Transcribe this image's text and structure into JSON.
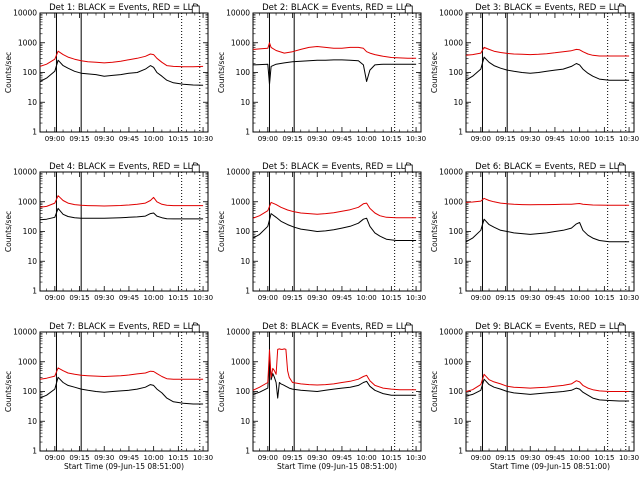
{
  "figure": {
    "colors": {
      "events": "#000000",
      "lld": "#e00000",
      "axes": "#000000"
    },
    "x_ticks": [
      "09:00",
      "09:15",
      "09:30",
      "09:45",
      "10:00",
      "10:15",
      "10:30"
    ],
    "y_ticks": [
      "1",
      "10",
      "100",
      "1000",
      "10000"
    ],
    "ylabel": "Counts/sec"
  },
  "chart_data": [
    {
      "type": "line",
      "title": "Det 1: BLACK = Events, RED = LLD",
      "xlabel": "",
      "ylabel": "Counts/sec",
      "xlim": [
        "08:51",
        "10:33"
      ],
      "ylim": [
        1,
        10000
      ],
      "yscale": "log",
      "grid": false,
      "solid_vlines": [
        "09:01",
        "09:16"
      ],
      "dotted_vlines": [
        "10:17",
        "10:28"
      ],
      "x": [
        "08:51",
        "08:55",
        "09:00",
        "09:02",
        "09:05",
        "09:08",
        "09:12",
        "09:16",
        "09:20",
        "09:25",
        "09:30",
        "09:35",
        "09:40",
        "09:45",
        "09:50",
        "09:55",
        "09:58",
        "10:00",
        "10:02",
        "10:05",
        "10:08",
        "10:12",
        "10:18",
        "10:24",
        "10:30"
      ],
      "series": [
        {
          "name": "Events",
          "values": [
            50,
            65,
            110,
            260,
            170,
            140,
            110,
            95,
            90,
            85,
            75,
            80,
            85,
            95,
            100,
            130,
            170,
            150,
            100,
            75,
            55,
            45,
            40,
            38,
            37
          ]
        },
        {
          "name": "LLD",
          "values": [
            160,
            190,
            280,
            520,
            400,
            330,
            280,
            250,
            230,
            220,
            210,
            220,
            240,
            270,
            300,
            350,
            420,
            400,
            300,
            220,
            170,
            160,
            155,
            155,
            160
          ]
        }
      ]
    },
    {
      "type": "line",
      "title": "Det 2: BLACK = Events, RED = LLD",
      "xlabel": "",
      "ylabel": "Counts/sec",
      "xlim": [
        "08:51",
        "10:33"
      ],
      "ylim": [
        1,
        10000
      ],
      "yscale": "log",
      "grid": false,
      "solid_vlines": [
        "09:01",
        "09:16"
      ],
      "dotted_vlines": [
        "10:17",
        "10:28"
      ],
      "x": [
        "08:51",
        "08:55",
        "09:00",
        "09:01",
        "09:02",
        "09:05",
        "09:10",
        "09:15",
        "09:20",
        "09:25",
        "09:30",
        "09:35",
        "09:40",
        "09:45",
        "09:50",
        "09:55",
        "09:58",
        "10:00",
        "10:02",
        "10:05",
        "10:10",
        "10:15",
        "10:20",
        "10:25",
        "10:30"
      ],
      "series": [
        {
          "name": "Events",
          "values": [
            180,
            185,
            190,
            40,
            160,
            190,
            210,
            230,
            240,
            250,
            260,
            260,
            265,
            265,
            260,
            250,
            180,
            50,
            120,
            180,
            190,
            190,
            190,
            190,
            190
          ]
        },
        {
          "name": "LLD",
          "values": [
            600,
            620,
            650,
            1000,
            700,
            550,
            450,
            500,
            600,
            700,
            750,
            700,
            650,
            650,
            700,
            700,
            650,
            500,
            450,
            400,
            350,
            320,
            310,
            300,
            300
          ]
        }
      ]
    },
    {
      "type": "line",
      "title": "Det 3: BLACK = Events, RED = LLD",
      "xlabel": "",
      "ylabel": "Counts/sec",
      "xlim": [
        "08:51",
        "10:33"
      ],
      "ylim": [
        1,
        10000
      ],
      "yscale": "log",
      "grid": false,
      "solid_vlines": [
        "09:01",
        "09:16"
      ],
      "dotted_vlines": [
        "10:17",
        "10:28"
      ],
      "x": [
        "08:51",
        "08:55",
        "09:00",
        "09:02",
        "09:05",
        "09:08",
        "09:12",
        "09:16",
        "09:20",
        "09:25",
        "09:30",
        "09:35",
        "09:40",
        "09:45",
        "09:50",
        "09:55",
        "09:58",
        "10:00",
        "10:02",
        "10:05",
        "10:08",
        "10:12",
        "10:18",
        "10:24",
        "10:30"
      ],
      "series": [
        {
          "name": "Events",
          "values": [
            55,
            75,
            130,
            330,
            220,
            170,
            140,
            120,
            110,
            100,
            95,
            100,
            110,
            120,
            130,
            160,
            200,
            180,
            130,
            95,
            75,
            60,
            55,
            55,
            55
          ]
        },
        {
          "name": "LLD",
          "values": [
            380,
            400,
            450,
            700,
            600,
            520,
            470,
            440,
            420,
            410,
            400,
            410,
            430,
            460,
            500,
            540,
            600,
            580,
            500,
            420,
            380,
            360,
            360,
            360,
            360
          ]
        }
      ]
    },
    {
      "type": "line",
      "title": "Det 4: BLACK = Events, RED = LLD",
      "xlabel": "",
      "ylabel": "Counts/sec",
      "xlim": [
        "08:51",
        "10:33"
      ],
      "ylim": [
        1,
        10000
      ],
      "yscale": "log",
      "grid": false,
      "solid_vlines": [
        "09:01",
        "09:16"
      ],
      "dotted_vlines": [
        "10:17",
        "10:28"
      ],
      "x": [
        "08:51",
        "08:55",
        "09:00",
        "09:02",
        "09:05",
        "09:08",
        "09:12",
        "09:16",
        "09:20",
        "09:25",
        "09:30",
        "09:35",
        "09:40",
        "09:45",
        "09:50",
        "09:55",
        "09:58",
        "10:00",
        "10:02",
        "10:05",
        "10:08",
        "10:12",
        "10:18",
        "10:24",
        "10:30"
      ],
      "series": [
        {
          "name": "Events",
          "values": [
            250,
            260,
            300,
            600,
            380,
            320,
            290,
            280,
            280,
            280,
            280,
            285,
            290,
            300,
            310,
            330,
            400,
            420,
            330,
            290,
            270,
            265,
            265,
            265,
            265
          ]
        },
        {
          "name": "LLD",
          "values": [
            650,
            700,
            900,
            1600,
            1100,
            900,
            800,
            760,
            740,
            730,
            720,
            730,
            750,
            780,
            820,
            900,
            1100,
            1400,
            1000,
            820,
            760,
            740,
            740,
            740,
            740
          ]
        }
      ]
    },
    {
      "type": "line",
      "title": "Det 5: BLACK = Events, RED = LLD",
      "xlabel": "",
      "ylabel": "Counts/sec",
      "xlim": [
        "08:51",
        "10:33"
      ],
      "ylim": [
        1,
        10000
      ],
      "yscale": "log",
      "grid": false,
      "solid_vlines": [
        "09:01",
        "09:16"
      ],
      "dotted_vlines": [
        "10:17",
        "10:28"
      ],
      "x": [
        "08:51",
        "08:55",
        "09:00",
        "09:02",
        "09:05",
        "09:08",
        "09:12",
        "09:16",
        "09:20",
        "09:25",
        "09:30",
        "09:35",
        "09:40",
        "09:45",
        "09:50",
        "09:55",
        "09:58",
        "10:00",
        "10:02",
        "10:05",
        "10:08",
        "10:12",
        "10:18",
        "10:24",
        "10:30"
      ],
      "series": [
        {
          "name": "Events",
          "values": [
            60,
            80,
            150,
            400,
            300,
            220,
            170,
            140,
            120,
            110,
            100,
            105,
            115,
            130,
            150,
            190,
            260,
            280,
            150,
            90,
            70,
            55,
            50,
            50,
            50
          ]
        },
        {
          "name": "LLD",
          "values": [
            280,
            340,
            500,
            950,
            800,
            650,
            530,
            460,
            420,
            400,
            380,
            400,
            430,
            480,
            540,
            650,
            850,
            900,
            600,
            420,
            340,
            300,
            290,
            290,
            290
          ]
        }
      ]
    },
    {
      "type": "line",
      "title": "Det 6: BLACK = Events, RED = LLD",
      "xlabel": "",
      "ylabel": "Counts/sec",
      "xlim": [
        "08:51",
        "10:33"
      ],
      "ylim": [
        1,
        10000
      ],
      "yscale": "log",
      "grid": false,
      "solid_vlines": [
        "09:01",
        "09:16"
      ],
      "dotted_vlines": [
        "10:17",
        "10:28"
      ],
      "x": [
        "08:51",
        "08:55",
        "09:00",
        "09:02",
        "09:05",
        "09:08",
        "09:12",
        "09:16",
        "09:20",
        "09:25",
        "09:30",
        "09:35",
        "09:40",
        "09:45",
        "09:50",
        "09:55",
        "09:58",
        "10:00",
        "10:02",
        "10:05",
        "10:08",
        "10:12",
        "10:18",
        "10:24",
        "10:30"
      ],
      "series": [
        {
          "name": "Events",
          "values": [
            45,
            60,
            110,
            260,
            170,
            140,
            110,
            100,
            90,
            85,
            80,
            85,
            90,
            100,
            110,
            130,
            180,
            200,
            110,
            75,
            60,
            50,
            45,
            45,
            45
          ]
        },
        {
          "name": "LLD",
          "values": [
            950,
            980,
            1050,
            1300,
            1100,
            1000,
            900,
            850,
            820,
            800,
            790,
            800,
            800,
            810,
            820,
            830,
            850,
            870,
            830,
            800,
            780,
            770,
            760,
            760,
            760
          ]
        }
      ]
    },
    {
      "type": "line",
      "title": "Det 7: BLACK = Events, RED = LLD",
      "xlabel": "Start Time (09-Jun-15 08:51:00)",
      "ylabel": "Counts/sec",
      "xlim": [
        "08:51",
        "10:33"
      ],
      "ylim": [
        1,
        10000
      ],
      "yscale": "log",
      "grid": false,
      "solid_vlines": [
        "09:01",
        "09:16"
      ],
      "dotted_vlines": [
        "10:17",
        "10:28"
      ],
      "x": [
        "08:51",
        "08:55",
        "09:00",
        "09:02",
        "09:05",
        "09:08",
        "09:12",
        "09:16",
        "09:20",
        "09:25",
        "09:30",
        "09:35",
        "09:40",
        "09:45",
        "09:50",
        "09:55",
        "09:58",
        "10:00",
        "10:02",
        "10:05",
        "10:08",
        "10:12",
        "10:18",
        "10:24",
        "10:30"
      ],
      "series": [
        {
          "name": "Events",
          "values": [
            60,
            75,
            120,
            300,
            200,
            160,
            140,
            120,
            110,
            100,
            95,
            100,
            105,
            110,
            120,
            140,
            170,
            160,
            120,
            90,
            60,
            45,
            40,
            38,
            38
          ]
        },
        {
          "name": "LLD",
          "values": [
            260,
            280,
            330,
            620,
            500,
            420,
            380,
            350,
            340,
            330,
            320,
            330,
            340,
            360,
            390,
            420,
            480,
            470,
            400,
            320,
            270,
            260,
            260,
            260,
            260
          ]
        }
      ]
    },
    {
      "type": "line",
      "title": "Det 8: BLACK = Events, RED = LLD",
      "xlabel": "Start Time (09-Jun-15 08:51:00)",
      "ylabel": "Counts/sec",
      "xlim": [
        "08:51",
        "10:33"
      ],
      "ylim": [
        1,
        10000
      ],
      "yscale": "log",
      "grid": false,
      "solid_vlines": [
        "09:01",
        "09:16"
      ],
      "dotted_vlines": [
        "10:17",
        "10:28"
      ],
      "x": [
        "08:51",
        "08:55",
        "09:00",
        "09:01",
        "09:02",
        "09:03",
        "09:04",
        "09:05",
        "09:06",
        "09:07",
        "09:08",
        "09:09",
        "09:10",
        "09:11",
        "09:12",
        "09:13",
        "09:15",
        "09:20",
        "09:25",
        "09:30",
        "09:35",
        "09:40",
        "09:45",
        "09:50",
        "09:55",
        "09:58",
        "10:00",
        "10:02",
        "10:05",
        "10:10",
        "10:15",
        "10:20",
        "10:25",
        "10:30"
      ],
      "series": [
        {
          "name": "Events",
          "values": [
            80,
            95,
            130,
            1500,
            250,
            400,
            300,
            200,
            60,
            200,
            180,
            170,
            160,
            150,
            140,
            130,
            120,
            110,
            105,
            100,
            110,
            120,
            130,
            140,
            160,
            200,
            220,
            150,
            110,
            85,
            75,
            75,
            75,
            75
          ]
        },
        {
          "name": "LLD",
          "values": [
            110,
            140,
            200,
            2500,
            300,
            600,
            500,
            380,
            2600,
            2700,
            2600,
            2600,
            2700,
            2600,
            500,
            300,
            200,
            180,
            170,
            165,
            170,
            180,
            200,
            220,
            260,
            320,
            350,
            230,
            160,
            130,
            120,
            115,
            115,
            115
          ]
        }
      ]
    },
    {
      "type": "line",
      "title": "Det 9: BLACK = Events, RED = LLD",
      "xlabel": "Start Time (09-Jun-15 08:51:00)",
      "ylabel": "Counts/sec",
      "xlim": [
        "08:51",
        "10:33"
      ],
      "ylim": [
        1,
        10000
      ],
      "yscale": "log",
      "grid": false,
      "solid_vlines": [
        "09:01",
        "09:16"
      ],
      "dotted_vlines": [
        "10:17",
        "10:28"
      ],
      "x": [
        "08:51",
        "08:55",
        "09:00",
        "09:02",
        "09:05",
        "09:08",
        "09:12",
        "09:16",
        "09:20",
        "09:25",
        "09:30",
        "09:35",
        "09:40",
        "09:45",
        "09:50",
        "09:55",
        "09:58",
        "10:00",
        "10:02",
        "10:05",
        "10:08",
        "10:12",
        "10:18",
        "10:24",
        "10:30"
      ],
      "series": [
        {
          "name": "Events",
          "values": [
            70,
            80,
            110,
            260,
            170,
            140,
            120,
            100,
            90,
            85,
            80,
            85,
            90,
            95,
            100,
            110,
            130,
            120,
            95,
            75,
            60,
            52,
            50,
            48,
            48
          ]
        },
        {
          "name": "LLD",
          "values": [
            100,
            115,
            170,
            380,
            250,
            210,
            180,
            150,
            140,
            135,
            130,
            135,
            140,
            150,
            160,
            180,
            230,
            210,
            160,
            130,
            115,
            105,
            100,
            100,
            100
          ]
        }
      ]
    }
  ]
}
